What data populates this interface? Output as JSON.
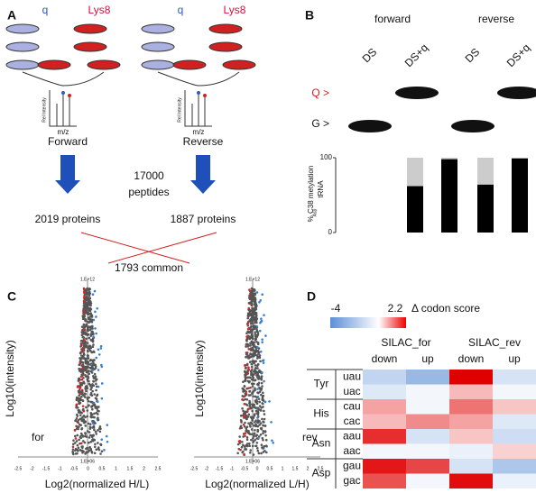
{
  "panels": {
    "A": {
      "label": "A",
      "forward": {
        "q": "q",
        "lys": "Lys8",
        "ylabel": "Rel Intensity",
        "xlabel": "m/z",
        "name": "Forward",
        "proteins": "2019 proteins"
      },
      "reverse": {
        "q": "q",
        "lys": "Lys8",
        "ylabel": "Rel Intensity",
        "xlabel": "m/z",
        "name": "Reverse",
        "proteins": "1887 proteins"
      },
      "peptides": [
        "17000",
        "peptides"
      ],
      "common": "1793 common"
    },
    "B": {
      "label": "B",
      "groups": [
        "forward",
        "reverse"
      ],
      "lanes": [
        "DS",
        "DS+q",
        "DS",
        "DS+q"
      ],
      "bands": [
        "Q >",
        "G >"
      ],
      "chart_data": {
        "type": "bar",
        "ylabel": [
          "% C38 metylation",
          "tRNA",
          "Asp"
        ],
        "values": [
          62,
          98,
          64,
          99
        ],
        "ylim": [
          0,
          100
        ],
        "yticks": [
          0,
          100
        ]
      }
    },
    "C": {
      "label": "C",
      "plots": [
        {
          "ylabel": "Log10(intensity)",
          "xlabel": "Log2(normalized H/L)",
          "corner": "for",
          "ytop": "1.E+12",
          "ybottom": "1.E+06",
          "xticks": [
            -2.5,
            -2,
            -1.5,
            -1,
            -0.5,
            0,
            0.5,
            1,
            1.5,
            2,
            2.5
          ]
        },
        {
          "ylabel": "Log10(intensity)",
          "xlabel": "Log2(normalized L/H)",
          "corner": "rev",
          "ytop": "1.E+12",
          "ybottom": "1.E+06",
          "xticks": [
            -2.5,
            -2,
            -1.5,
            -1,
            -0.5,
            0,
            0.5,
            1,
            1.5,
            2,
            2.5
          ]
        }
      ]
    },
    "D": {
      "label": "D",
      "scale_min": -4,
      "scale_max": 2.2,
      "scale_label": "Δ codon score",
      "chart_data": {
        "type": "heatmap",
        "columns": [
          "SILAC_for",
          "SILAC_rev"
        ],
        "subcolumns": [
          "down",
          "up",
          "down",
          "up"
        ],
        "groups": [
          "Tyr",
          "His",
          "Asn",
          "Asp"
        ],
        "rows": [
          "uau",
          "uac",
          "cau",
          "cac",
          "aau",
          "aac",
          "gau",
          "gac"
        ],
        "values": [
          [
            -1.5,
            -2.5,
            2.2,
            -1
          ],
          [
            -0.8,
            -0.3,
            0.6,
            -0.3
          ],
          [
            0.8,
            -0.3,
            1.2,
            0.5
          ],
          [
            0.6,
            1,
            0.8,
            -0.8
          ],
          [
            1.8,
            -1,
            0.5,
            -1.2
          ],
          [
            -0.3,
            -0.3,
            -0.5,
            0.4
          ],
          [
            2,
            1.6,
            -1,
            -2
          ],
          [
            1.5,
            -0.3,
            2.1,
            -0.5
          ]
        ]
      }
    }
  }
}
